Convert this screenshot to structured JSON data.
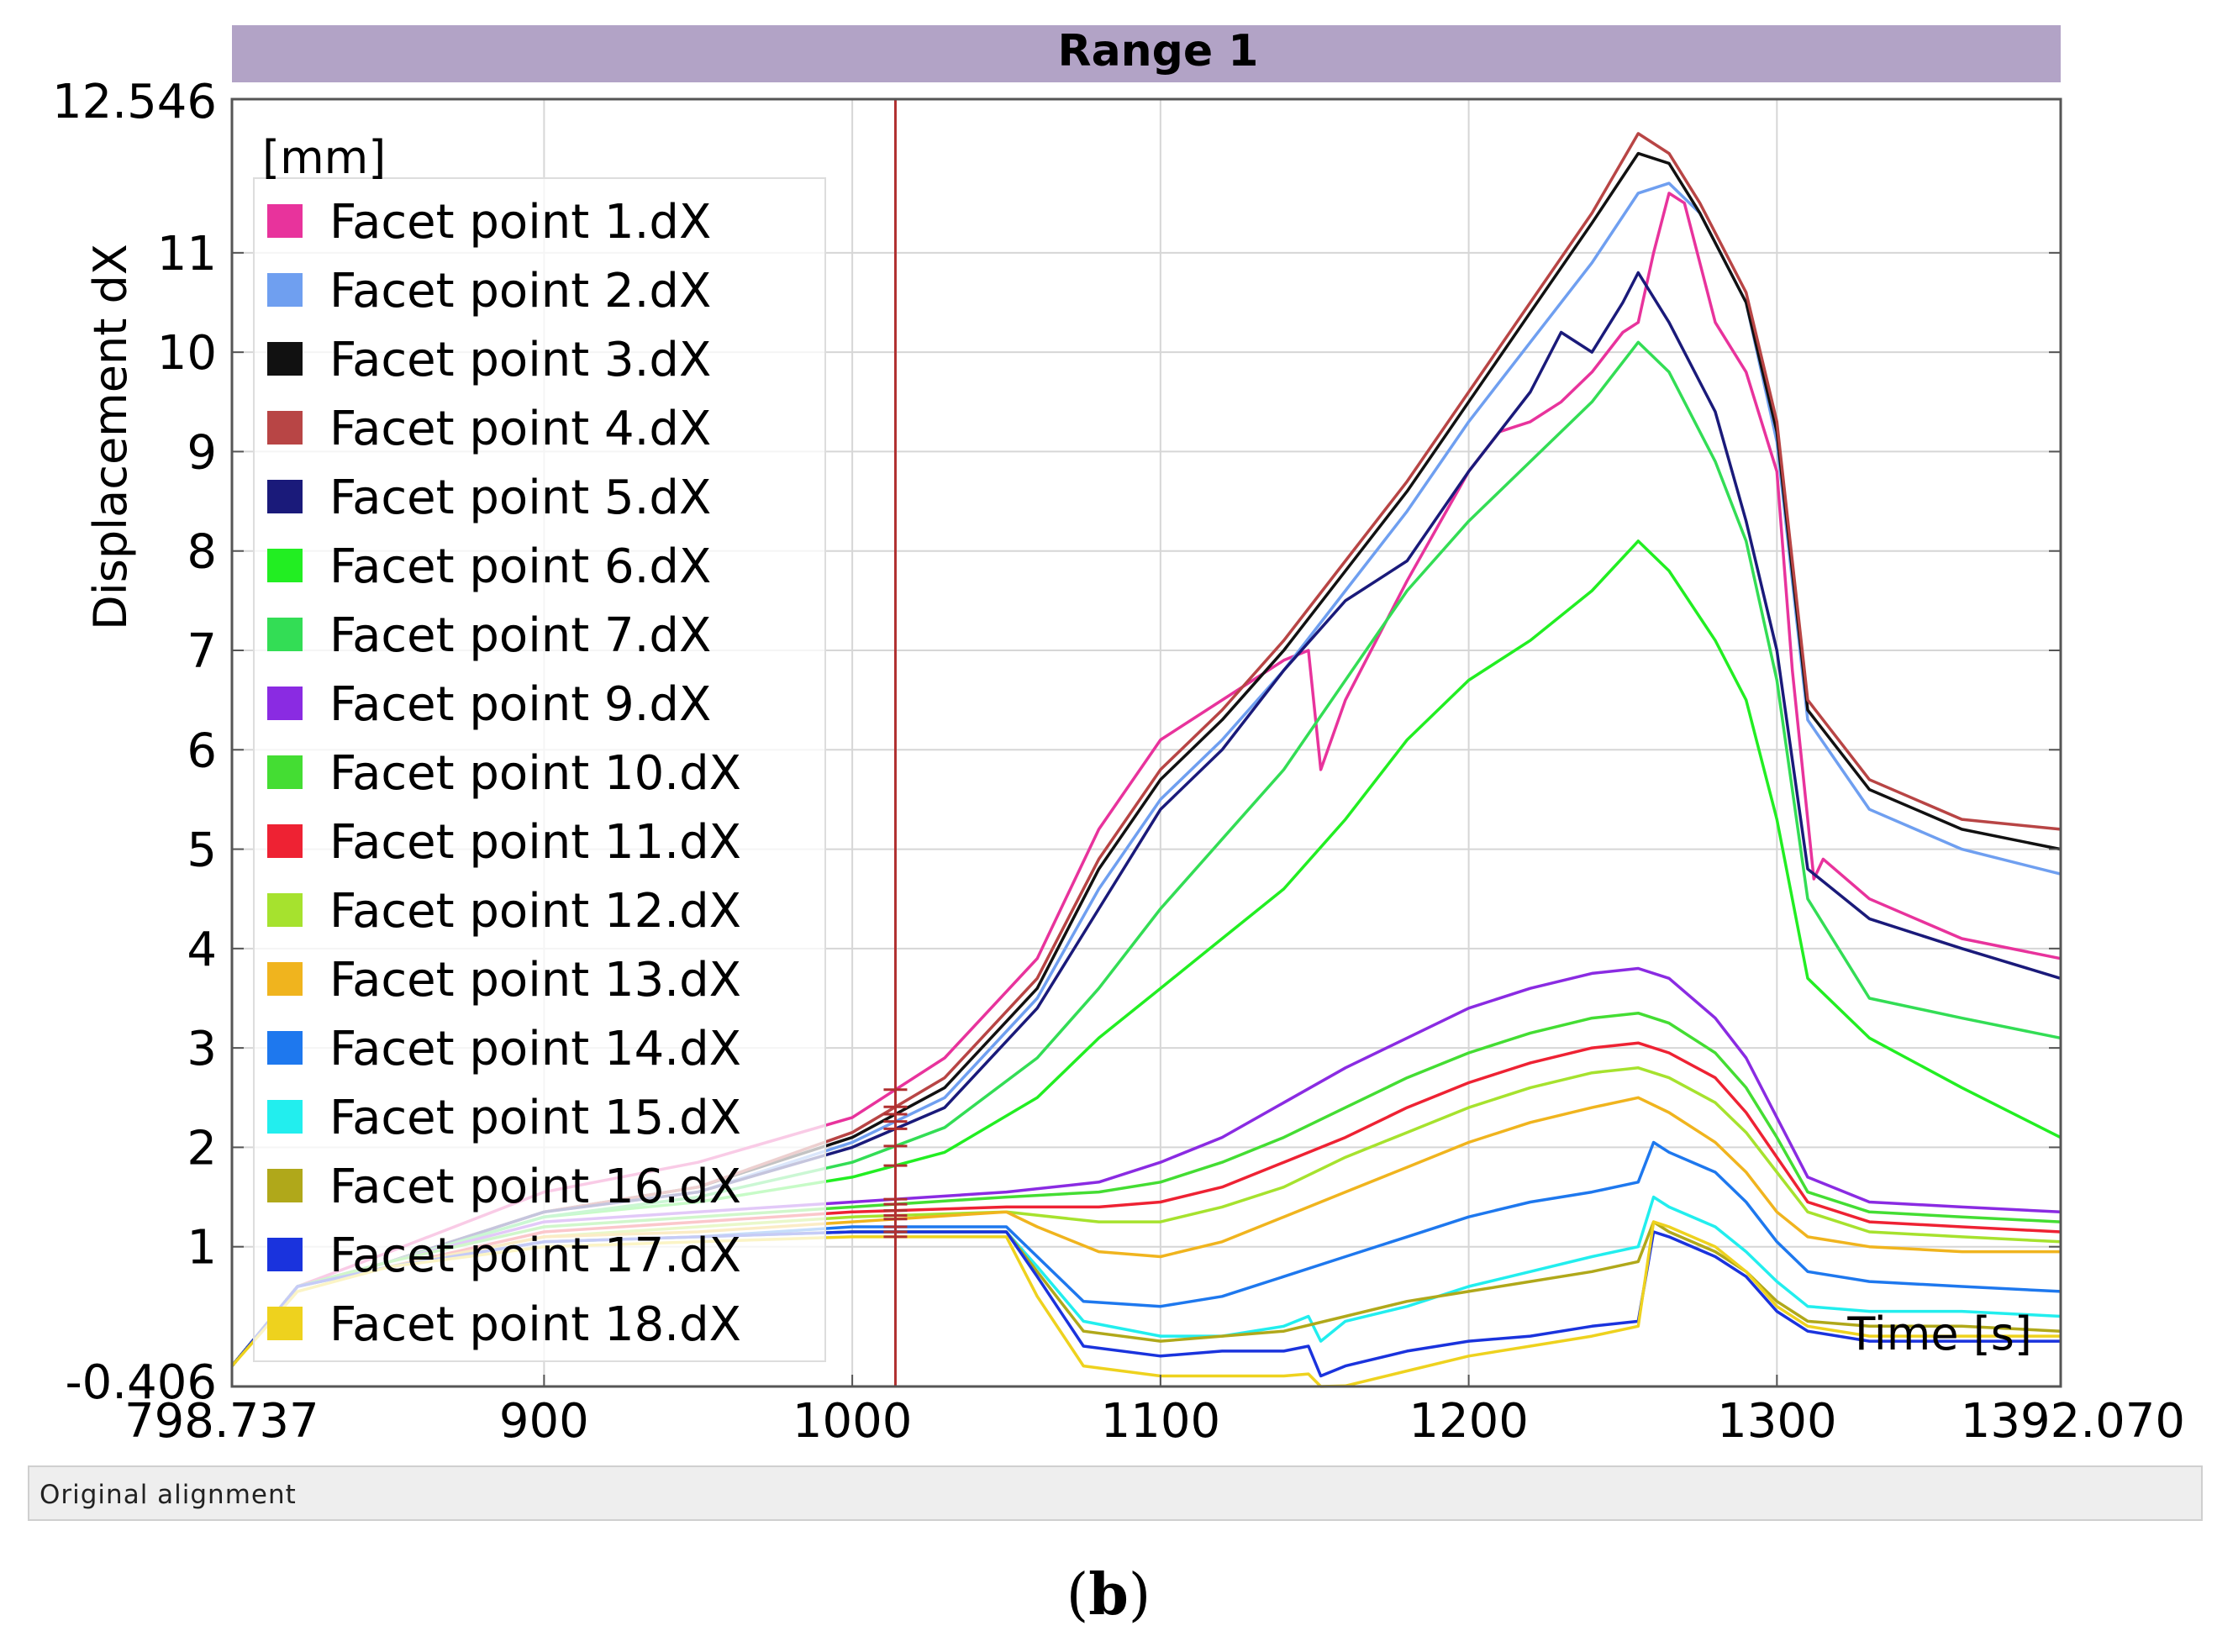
{
  "colors": {
    "title_bar": "#b2a3c6",
    "grid": "#d6d6d6",
    "cursor_line": "#b03030"
  },
  "status": {
    "text": "Original alignment"
  },
  "caption": {
    "open": "(",
    "letter": "b",
    "close": ")"
  },
  "chart_data": {
    "type": "line",
    "title": "Range 1",
    "xlabel": "Time [s]",
    "ylabel": "Displacement dX",
    "yunit": "[mm]",
    "xlim": [
      798.737,
      1392.07
    ],
    "ylim": [
      -0.406,
      12.546
    ],
    "xticks": [
      {
        "value": 798.737,
        "label": "798.737"
      },
      {
        "value": 900,
        "label": "900"
      },
      {
        "value": 1000,
        "label": "1000"
      },
      {
        "value": 1100,
        "label": "1100"
      },
      {
        "value": 1200,
        "label": "1200"
      },
      {
        "value": 1300,
        "label": "1300"
      },
      {
        "value": 1392.07,
        "label": "1392.070"
      }
    ],
    "yticks": [
      {
        "value": -0.406,
        "label": "-0.406"
      },
      {
        "value": 1,
        "label": "1"
      },
      {
        "value": 2,
        "label": "2"
      },
      {
        "value": 3,
        "label": "3"
      },
      {
        "value": 4,
        "label": "4"
      },
      {
        "value": 5,
        "label": "5"
      },
      {
        "value": 6,
        "label": "6"
      },
      {
        "value": 7,
        "label": "7"
      },
      {
        "value": 8,
        "label": "8"
      },
      {
        "value": 9,
        "label": "9"
      },
      {
        "value": 10,
        "label": "10"
      },
      {
        "value": 11,
        "label": "11"
      },
      {
        "value": 12.546,
        "label": "12.546"
      }
    ],
    "cursor_x": 1014,
    "legend_position": "top-left",
    "series": [
      {
        "name": "Facet point 1.dX",
        "color": "#e8339c",
        "x": [
          798.7,
          820,
          850,
          900,
          950,
          1000,
          1030,
          1060,
          1080,
          1100,
          1120,
          1140,
          1148,
          1152,
          1160,
          1180,
          1200,
          1210,
          1220,
          1230,
          1240,
          1250,
          1255,
          1260,
          1265,
          1270,
          1280,
          1290,
          1300,
          1305,
          1312,
          1315,
          1330,
          1360,
          1392
        ],
        "y": [
          -0.2,
          0.6,
          0.95,
          1.55,
          1.85,
          2.3,
          2.9,
          3.9,
          5.2,
          6.1,
          6.5,
          6.9,
          7.0,
          5.8,
          6.5,
          7.7,
          8.8,
          9.2,
          9.3,
          9.5,
          9.8,
          10.2,
          10.3,
          11.0,
          11.6,
          11.5,
          10.3,
          9.8,
          8.8,
          6.8,
          4.7,
          4.9,
          4.5,
          4.1,
          3.9
        ]
      },
      {
        "name": "Facet point 2.dX",
        "color": "#6f9ff0",
        "x": [
          798.7,
          820,
          850,
          900,
          950,
          1000,
          1030,
          1060,
          1080,
          1100,
          1120,
          1140,
          1160,
          1180,
          1200,
          1220,
          1240,
          1255,
          1265,
          1275,
          1290,
          1300,
          1310,
          1330,
          1360,
          1392
        ],
        "y": [
          -0.2,
          0.6,
          0.85,
          1.35,
          1.55,
          2.05,
          2.5,
          3.5,
          4.6,
          5.5,
          6.1,
          6.8,
          7.6,
          8.4,
          9.3,
          10.1,
          10.9,
          11.6,
          11.7,
          11.4,
          10.5,
          9.1,
          6.3,
          5.4,
          5.0,
          4.75
        ]
      },
      {
        "name": "Facet point 3.dX",
        "color": "#111111",
        "x": [
          798.7,
          820,
          850,
          900,
          950,
          1000,
          1030,
          1060,
          1080,
          1100,
          1120,
          1140,
          1160,
          1180,
          1200,
          1220,
          1240,
          1255,
          1265,
          1275,
          1290,
          1300,
          1310,
          1330,
          1360,
          1392
        ],
        "y": [
          -0.2,
          0.6,
          0.85,
          1.35,
          1.6,
          2.1,
          2.6,
          3.6,
          4.8,
          5.7,
          6.3,
          7.0,
          7.8,
          8.6,
          9.5,
          10.4,
          11.3,
          12.0,
          11.9,
          11.4,
          10.5,
          9.2,
          6.4,
          5.6,
          5.2,
          5.0
        ]
      },
      {
        "name": "Facet point 4.dX",
        "color": "#b84545",
        "x": [
          798.7,
          820,
          850,
          900,
          950,
          1000,
          1030,
          1060,
          1080,
          1100,
          1120,
          1140,
          1160,
          1180,
          1200,
          1220,
          1240,
          1255,
          1265,
          1275,
          1290,
          1300,
          1310,
          1330,
          1360,
          1392
        ],
        "y": [
          -0.2,
          0.6,
          0.85,
          1.35,
          1.6,
          2.15,
          2.7,
          3.7,
          4.9,
          5.8,
          6.4,
          7.1,
          7.9,
          8.7,
          9.6,
          10.5,
          11.4,
          12.2,
          12.0,
          11.5,
          10.6,
          9.3,
          6.5,
          5.7,
          5.3,
          5.2
        ]
      },
      {
        "name": "Facet point 5.dX",
        "color": "#1a1a7a",
        "x": [
          798.7,
          820,
          850,
          900,
          950,
          1000,
          1030,
          1060,
          1080,
          1100,
          1120,
          1140,
          1160,
          1180,
          1200,
          1220,
          1230,
          1240,
          1250,
          1255,
          1265,
          1280,
          1290,
          1300,
          1310,
          1330,
          1360,
          1392
        ],
        "y": [
          -0.2,
          0.6,
          0.85,
          1.35,
          1.55,
          2.0,
          2.4,
          3.4,
          4.4,
          5.4,
          6.0,
          6.8,
          7.5,
          7.9,
          8.8,
          9.6,
          10.2,
          10.0,
          10.5,
          10.8,
          10.3,
          9.4,
          8.3,
          7.0,
          4.8,
          4.3,
          4.0,
          3.7
        ]
      },
      {
        "name": "Facet point 6.dX",
        "color": "#22ee22",
        "x": [
          798.7,
          820,
          850,
          900,
          950,
          1000,
          1030,
          1060,
          1080,
          1100,
          1120,
          1140,
          1160,
          1180,
          1200,
          1220,
          1240,
          1255,
          1265,
          1280,
          1290,
          1300,
          1310,
          1330,
          1360,
          1392
        ],
        "y": [
          -0.2,
          0.6,
          0.85,
          1.3,
          1.45,
          1.7,
          1.95,
          2.5,
          3.1,
          3.6,
          4.1,
          4.6,
          5.3,
          6.1,
          6.7,
          7.1,
          7.6,
          8.1,
          7.8,
          7.1,
          6.5,
          5.3,
          3.7,
          3.1,
          2.6,
          2.1
        ]
      },
      {
        "name": "Facet point 7.dX",
        "color": "#33dd55",
        "x": [
          798.7,
          820,
          850,
          900,
          950,
          1000,
          1030,
          1060,
          1080,
          1100,
          1120,
          1140,
          1160,
          1180,
          1200,
          1220,
          1240,
          1255,
          1265,
          1280,
          1290,
          1300,
          1310,
          1330,
          1360,
          1392
        ],
        "y": [
          -0.2,
          0.6,
          0.85,
          1.3,
          1.5,
          1.85,
          2.2,
          2.9,
          3.6,
          4.4,
          5.1,
          5.8,
          6.7,
          7.6,
          8.3,
          8.9,
          9.5,
          10.1,
          9.8,
          8.9,
          8.1,
          6.7,
          4.5,
          3.5,
          3.3,
          3.1
        ]
      },
      {
        "name": "Facet point 9.dX",
        "color": "#8a2be2",
        "x": [
          798.7,
          820,
          850,
          900,
          950,
          1000,
          1050,
          1080,
          1100,
          1120,
          1140,
          1160,
          1180,
          1200,
          1220,
          1240,
          1255,
          1265,
          1280,
          1290,
          1300,
          1310,
          1330,
          1360,
          1392
        ],
        "y": [
          -0.2,
          0.6,
          0.85,
          1.25,
          1.35,
          1.45,
          1.55,
          1.65,
          1.85,
          2.1,
          2.45,
          2.8,
          3.1,
          3.4,
          3.6,
          3.75,
          3.8,
          3.7,
          3.3,
          2.9,
          2.3,
          1.7,
          1.45,
          1.4,
          1.35
        ]
      },
      {
        "name": "Facet point 10.dX",
        "color": "#44dd33",
        "x": [
          798.7,
          820,
          850,
          900,
          950,
          1000,
          1050,
          1080,
          1100,
          1120,
          1140,
          1160,
          1180,
          1200,
          1220,
          1240,
          1255,
          1265,
          1280,
          1290,
          1300,
          1310,
          1330,
          1360,
          1392
        ],
        "y": [
          -0.2,
          0.6,
          0.85,
          1.2,
          1.3,
          1.4,
          1.5,
          1.55,
          1.65,
          1.85,
          2.1,
          2.4,
          2.7,
          2.95,
          3.15,
          3.3,
          3.35,
          3.25,
          2.95,
          2.6,
          2.1,
          1.55,
          1.35,
          1.3,
          1.25
        ]
      },
      {
        "name": "Facet point 11.dX",
        "color": "#ee2233",
        "x": [
          798.7,
          820,
          850,
          900,
          950,
          1000,
          1050,
          1080,
          1100,
          1120,
          1140,
          1160,
          1180,
          1200,
          1220,
          1240,
          1255,
          1265,
          1280,
          1290,
          1300,
          1310,
          1330,
          1360,
          1392
        ],
        "y": [
          -0.2,
          0.6,
          0.8,
          1.15,
          1.25,
          1.35,
          1.4,
          1.4,
          1.45,
          1.6,
          1.85,
          2.1,
          2.4,
          2.65,
          2.85,
          3.0,
          3.05,
          2.95,
          2.7,
          2.35,
          1.9,
          1.45,
          1.25,
          1.2,
          1.15
        ]
      },
      {
        "name": "Facet point 12.dX",
        "color": "#a6e22e",
        "x": [
          798.7,
          820,
          850,
          900,
          950,
          1000,
          1050,
          1080,
          1100,
          1120,
          1140,
          1160,
          1180,
          1200,
          1220,
          1240,
          1255,
          1265,
          1280,
          1290,
          1300,
          1310,
          1330,
          1360,
          1392
        ],
        "y": [
          -0.2,
          0.6,
          0.8,
          1.1,
          1.2,
          1.3,
          1.35,
          1.25,
          1.25,
          1.4,
          1.6,
          1.9,
          2.15,
          2.4,
          2.6,
          2.75,
          2.8,
          2.7,
          2.45,
          2.15,
          1.75,
          1.35,
          1.15,
          1.1,
          1.05
        ]
      },
      {
        "name": "Facet point 13.dX",
        "color": "#f0b41e",
        "x": [
          798.7,
          820,
          850,
          900,
          950,
          1000,
          1050,
          1060,
          1080,
          1100,
          1120,
          1140,
          1160,
          1180,
          1200,
          1220,
          1240,
          1255,
          1265,
          1280,
          1290,
          1300,
          1310,
          1330,
          1360,
          1392
        ],
        "y": [
          -0.2,
          0.6,
          0.8,
          1.1,
          1.15,
          1.25,
          1.35,
          1.2,
          0.95,
          0.9,
          1.05,
          1.3,
          1.55,
          1.8,
          2.05,
          2.25,
          2.4,
          2.5,
          2.35,
          2.05,
          1.75,
          1.35,
          1.1,
          1.0,
          0.95,
          0.95
        ]
      },
      {
        "name": "Facet point 14.dX",
        "color": "#1e78ee",
        "x": [
          798.7,
          820,
          850,
          900,
          950,
          1000,
          1050,
          1060,
          1075,
          1100,
          1120,
          1140,
          1160,
          1180,
          1200,
          1220,
          1240,
          1255,
          1260,
          1265,
          1280,
          1290,
          1300,
          1310,
          1330,
          1360,
          1392
        ],
        "y": [
          -0.2,
          0.6,
          0.8,
          1.05,
          1.1,
          1.2,
          1.2,
          0.9,
          0.45,
          0.4,
          0.5,
          0.7,
          0.9,
          1.1,
          1.3,
          1.45,
          1.55,
          1.65,
          2.05,
          1.95,
          1.75,
          1.45,
          1.05,
          0.75,
          0.65,
          0.6,
          0.55
        ]
      },
      {
        "name": "Facet point 15.dX",
        "color": "#22eeee",
        "x": [
          798.7,
          820,
          850,
          900,
          950,
          1000,
          1050,
          1060,
          1075,
          1100,
          1120,
          1140,
          1148,
          1152,
          1160,
          1180,
          1200,
          1220,
          1240,
          1255,
          1260,
          1265,
          1280,
          1290,
          1300,
          1310,
          1330,
          1360,
          1392
        ],
        "y": [
          -0.2,
          0.6,
          0.8,
          1.05,
          1.1,
          1.15,
          1.15,
          0.8,
          0.25,
          0.1,
          0.1,
          0.2,
          0.3,
          0.05,
          0.25,
          0.4,
          0.6,
          0.75,
          0.9,
          1.0,
          1.5,
          1.4,
          1.2,
          0.95,
          0.65,
          0.4,
          0.35,
          0.35,
          0.3
        ]
      },
      {
        "name": "Facet point 16.dX",
        "color": "#b0a81a",
        "x": [
          798.7,
          820,
          850,
          900,
          950,
          1000,
          1050,
          1060,
          1075,
          1100,
          1120,
          1140,
          1160,
          1180,
          1200,
          1220,
          1240,
          1255,
          1260,
          1265,
          1280,
          1290,
          1300,
          1310,
          1330,
          1360,
          1392
        ],
        "y": [
          -0.2,
          0.6,
          0.8,
          1.05,
          1.1,
          1.15,
          1.15,
          0.75,
          0.15,
          0.05,
          0.1,
          0.15,
          0.3,
          0.45,
          0.55,
          0.65,
          0.75,
          0.85,
          1.25,
          1.15,
          0.95,
          0.75,
          0.45,
          0.25,
          0.2,
          0.2,
          0.15
        ]
      },
      {
        "name": "Facet point 17.dX",
        "color": "#1a33dd",
        "x": [
          798.7,
          820,
          850,
          900,
          950,
          1000,
          1050,
          1060,
          1075,
          1100,
          1120,
          1140,
          1148,
          1152,
          1160,
          1180,
          1200,
          1220,
          1240,
          1255,
          1260,
          1265,
          1280,
          1290,
          1300,
          1310,
          1330,
          1360,
          1392
        ],
        "y": [
          -0.2,
          0.6,
          0.8,
          1.05,
          1.1,
          1.15,
          1.15,
          0.7,
          0.0,
          -0.1,
          -0.05,
          -0.05,
          0.0,
          -0.3,
          -0.2,
          -0.05,
          0.05,
          0.1,
          0.2,
          0.25,
          1.15,
          1.1,
          0.9,
          0.7,
          0.35,
          0.15,
          0.05,
          0.05,
          0.05
        ]
      },
      {
        "name": "Facet point 18.dX",
        "color": "#eed21e",
        "x": [
          798.7,
          820,
          850,
          900,
          950,
          1000,
          1050,
          1060,
          1075,
          1100,
          1120,
          1140,
          1148,
          1152,
          1160,
          1180,
          1200,
          1220,
          1240,
          1255,
          1260,
          1265,
          1280,
          1290,
          1300,
          1310,
          1330,
          1360,
          1392
        ],
        "y": [
          -0.2,
          0.55,
          0.8,
          1.0,
          1.05,
          1.1,
          1.1,
          0.5,
          -0.2,
          -0.3,
          -0.3,
          -0.3,
          -0.28,
          -0.5,
          -0.4,
          -0.25,
          -0.1,
          0.0,
          0.1,
          0.2,
          1.25,
          1.2,
          1.0,
          0.75,
          0.4,
          0.2,
          0.1,
          0.1,
          0.1
        ]
      }
    ]
  }
}
